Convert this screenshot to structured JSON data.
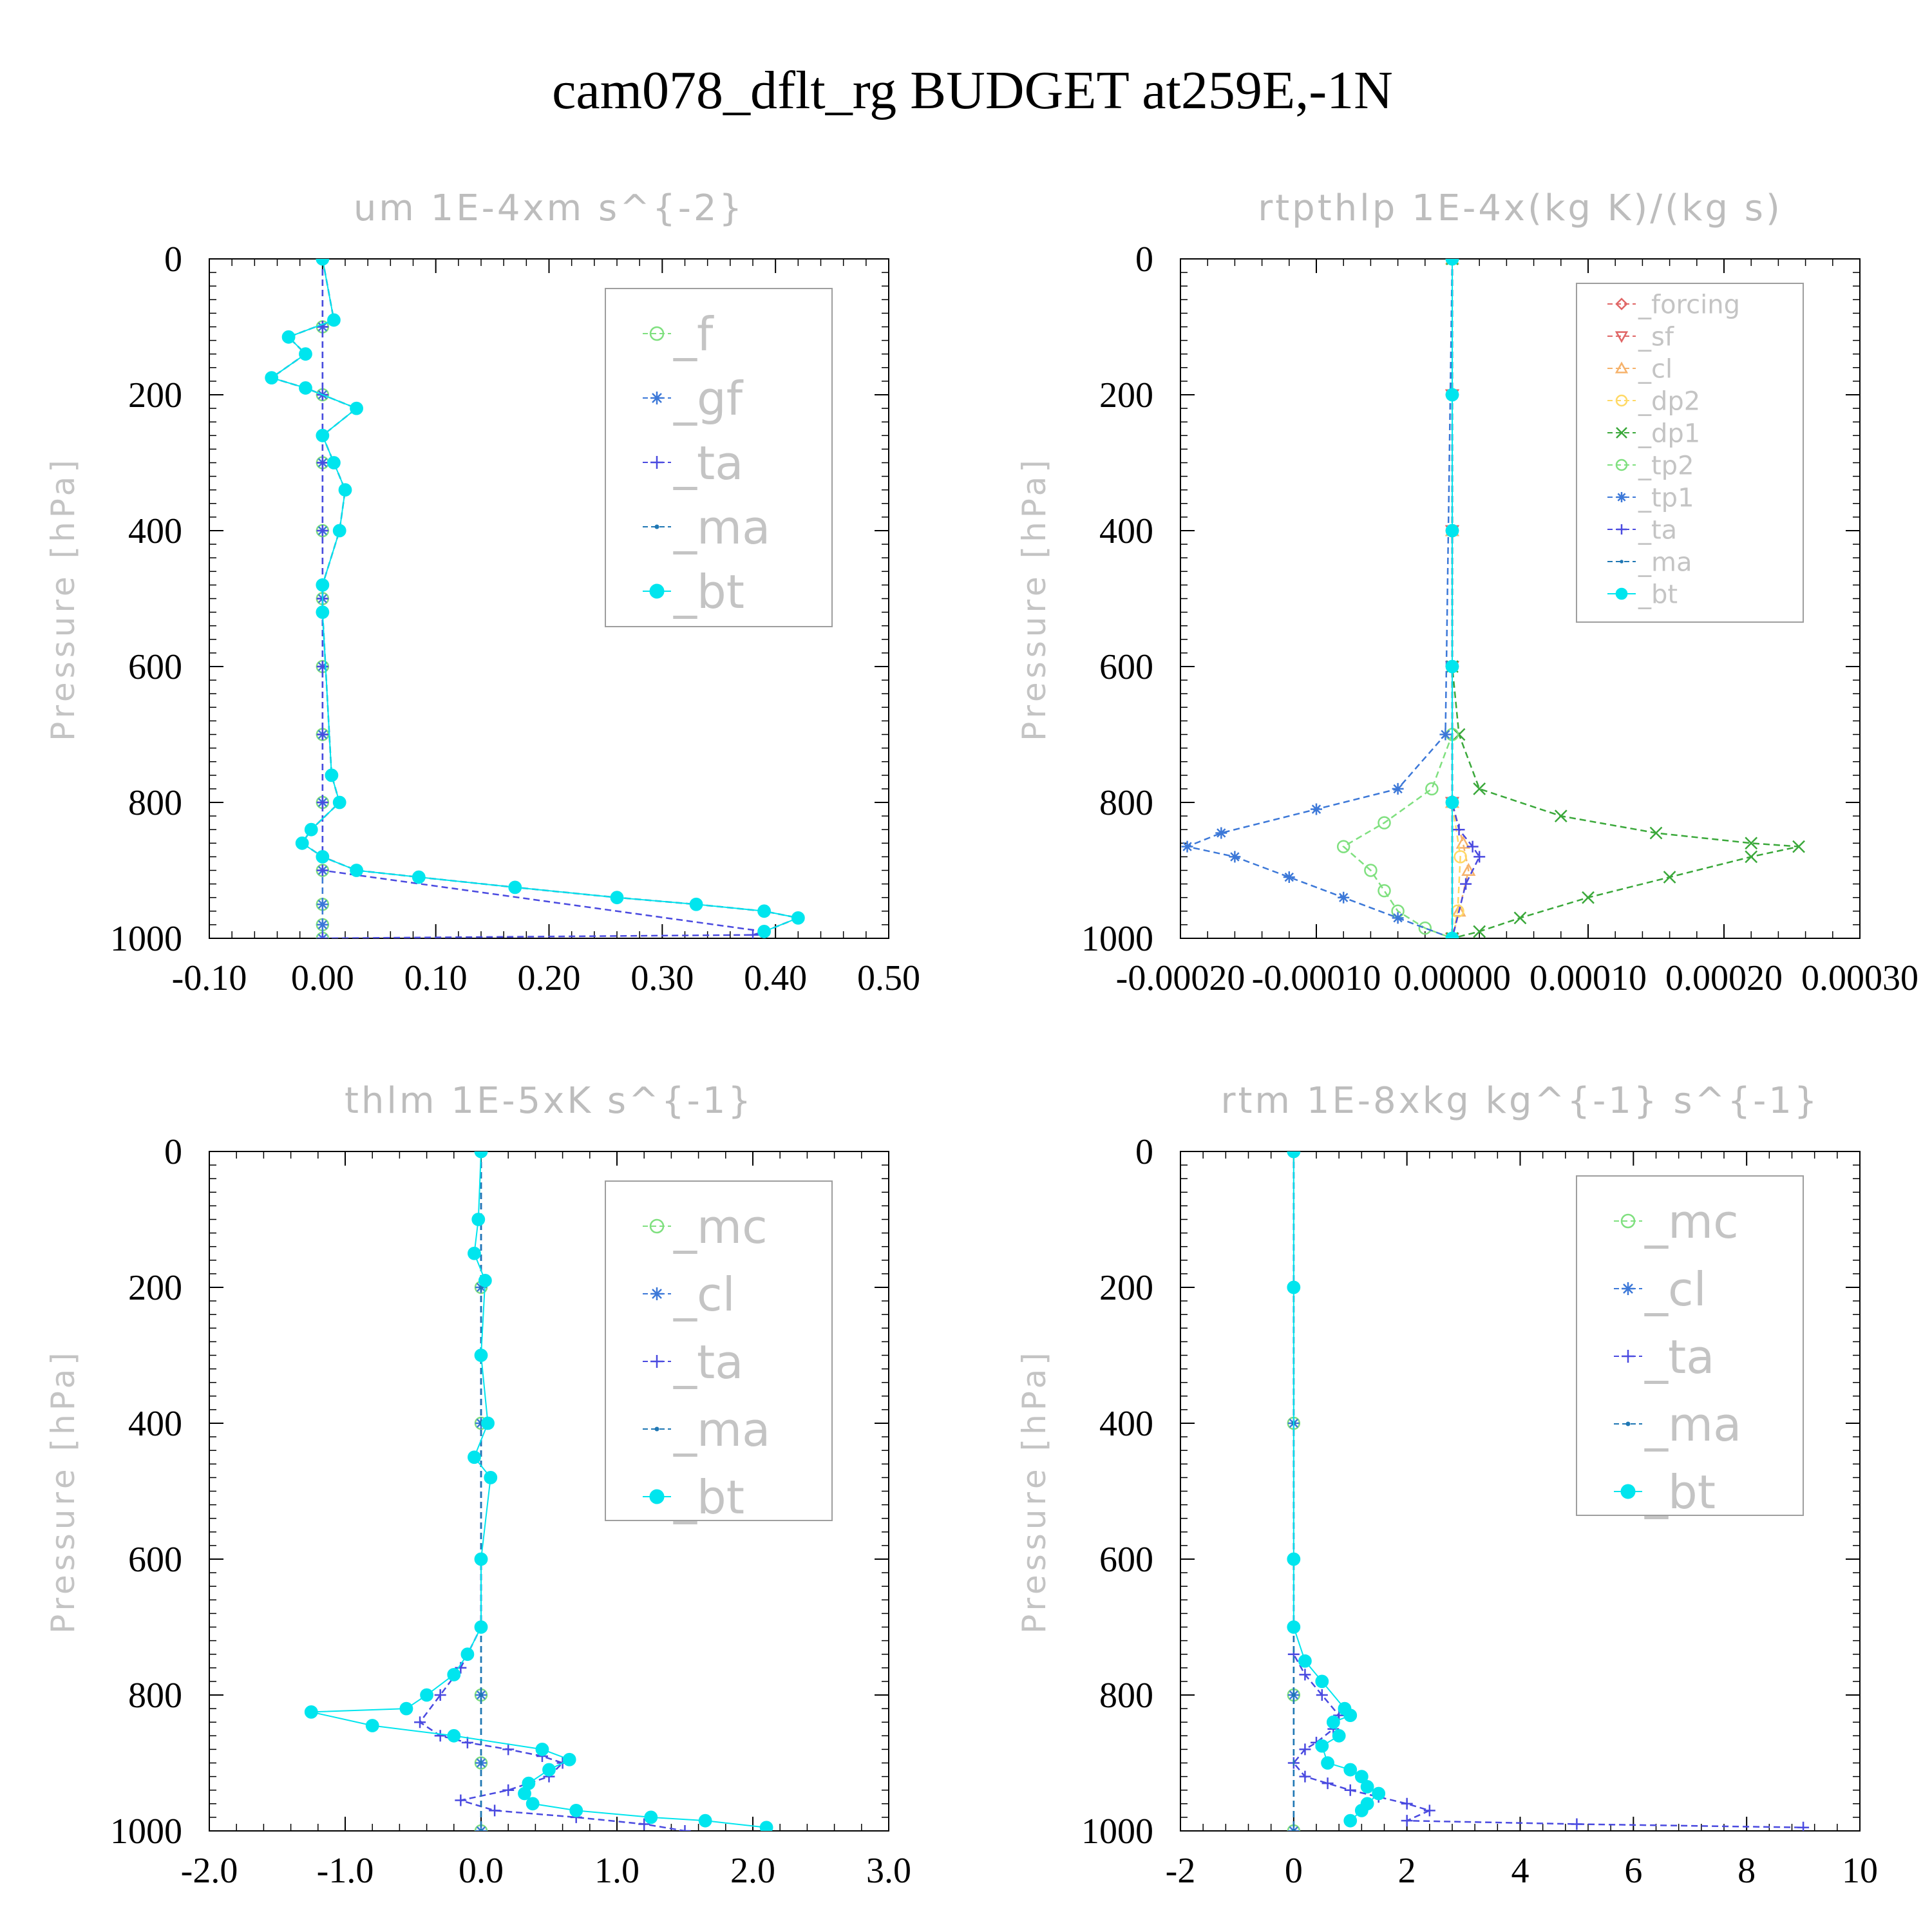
{
  "figure_title": "cam078_dflt_rg  BUDGET at259E,-1N",
  "chart_data": [
    {
      "type": "line",
      "title": "um  1E-4xm s^{-2}",
      "ylabel": "Pressure [hPa]",
      "xlabel": "",
      "xlim": [
        -0.1,
        0.5
      ],
      "ylim": [
        1000,
        0
      ],
      "x_tick_labels": [
        "-0.10",
        "0.00",
        "0.10",
        "0.20",
        "0.30",
        "0.40",
        "0.50"
      ],
      "y_tick_labels": [
        "0",
        "200",
        "400",
        "600",
        "800",
        "1000"
      ],
      "legend_position": "top-right",
      "series": [
        {
          "name": "_f",
          "color": "#7fe07f",
          "marker": "circle-open",
          "x": [
            0,
            0,
            0,
            0,
            0,
            0,
            0,
            0,
            0,
            0,
            0,
            0,
            0
          ],
          "y": [
            0,
            100,
            200,
            300,
            400,
            500,
            600,
            700,
            800,
            900,
            950,
            980,
            1000
          ]
        },
        {
          "name": "_gf",
          "color": "#3c78d8",
          "marker": "star",
          "x": [
            0,
            0,
            0,
            0,
            0,
            0,
            0,
            0,
            0,
            0,
            0,
            0,
            0
          ],
          "y": [
            0,
            100,
            200,
            300,
            400,
            500,
            600,
            700,
            800,
            900,
            950,
            980,
            1000
          ]
        },
        {
          "name": "_ta",
          "color": "#4a4ae0",
          "marker": "plus",
          "x": [
            0,
            0,
            0,
            0,
            0,
            0,
            0,
            0,
            0,
            0,
            0.39,
            0.38,
            0
          ],
          "y": [
            0,
            100,
            200,
            300,
            400,
            500,
            600,
            700,
            800,
            900,
            990,
            995,
            1000
          ]
        },
        {
          "name": "_ma",
          "color": "#1f77b4",
          "marker": "dot",
          "x": [
            0,
            0.01,
            -0.03,
            -0.015,
            -0.045,
            -0.015,
            0.03,
            0,
            0.01,
            0.02,
            0.015,
            0,
            0,
            0.008,
            0.015,
            -0.01,
            -0.018,
            0,
            0.03,
            0.085,
            0.17,
            0.26,
            0.33,
            0.39,
            0.42,
            0.39
          ],
          "y": [
            0,
            90,
            115,
            140,
            175,
            190,
            220,
            260,
            300,
            340,
            400,
            480,
            520,
            760,
            800,
            840,
            860,
            880,
            900,
            910,
            925,
            940,
            950,
            960,
            970,
            990
          ]
        },
        {
          "name": "_bt",
          "color": "#00e5ee",
          "marker": "filled-circle",
          "x": [
            0,
            0.01,
            -0.03,
            -0.015,
            -0.045,
            -0.015,
            0.03,
            0,
            0.01,
            0.02,
            0.015,
            0,
            0,
            0.008,
            0.015,
            -0.01,
            -0.018,
            0,
            0.03,
            0.085,
            0.17,
            0.26,
            0.33,
            0.39,
            0.42,
            0.39
          ],
          "y": [
            0,
            90,
            115,
            140,
            175,
            190,
            220,
            260,
            300,
            340,
            400,
            480,
            520,
            760,
            800,
            840,
            860,
            880,
            900,
            910,
            925,
            940,
            950,
            960,
            970,
            990
          ]
        }
      ]
    },
    {
      "type": "line",
      "title": "rtpthlp  1E-4x(kg K)/(kg s)",
      "ylabel": "Pressure [hPa]",
      "xlabel": "",
      "xlim": [
        -0.0002,
        0.0003
      ],
      "ylim": [
        1000,
        0
      ],
      "x_tick_labels": [
        "-0.00020",
        "-0.00010",
        "0.00000",
        "0.00010",
        "0.00020",
        "0.00030"
      ],
      "y_tick_labels": [
        "0",
        "200",
        "400",
        "600",
        "800",
        "1000"
      ],
      "legend_position": "top-right",
      "series": [
        {
          "name": "_forcing",
          "color": "#e06666",
          "marker": "diamond",
          "x": [
            0,
            0,
            0,
            0,
            0,
            0
          ],
          "y": [
            0,
            200,
            400,
            600,
            800,
            1000
          ]
        },
        {
          "name": "_sf",
          "color": "#e06666",
          "marker": "triangle-down",
          "x": [
            0,
            0,
            0,
            0,
            0,
            0
          ],
          "y": [
            0,
            200,
            400,
            600,
            800,
            1000
          ]
        },
        {
          "name": "_cl",
          "color": "#f6b26b",
          "marker": "triangle-up",
          "x": [
            0,
            0,
            0,
            8e-06,
            1.2e-05,
            5e-06,
            0
          ],
          "y": [
            0,
            400,
            800,
            860,
            900,
            960,
            1000
          ]
        },
        {
          "name": "_dp2",
          "color": "#ffd966",
          "marker": "circle-open",
          "x": [
            0,
            0,
            0,
            6e-06,
            4e-06,
            0
          ],
          "y": [
            0,
            400,
            800,
            880,
            960,
            1000
          ]
        },
        {
          "name": "_dp1",
          "color": "#3aa83a",
          "marker": "cross",
          "x": [
            0,
            0,
            5e-06,
            2e-05,
            8e-05,
            0.00015,
            0.00022,
            0.000255,
            0.00022,
            0.00016,
            0.0001,
            5e-05,
            2e-05,
            0
          ],
          "y": [
            0,
            600,
            700,
            780,
            820,
            845,
            860,
            865,
            880,
            910,
            940,
            970,
            990,
            1000
          ]
        },
        {
          "name": "_tp2",
          "color": "#7fe07f",
          "marker": "circle-open",
          "x": [
            0,
            0,
            -1.5e-05,
            -5e-05,
            -8e-05,
            -6e-05,
            -5e-05,
            -4e-05,
            -2e-05,
            0
          ],
          "y": [
            0,
            700,
            780,
            830,
            865,
            900,
            930,
            960,
            985,
            1000
          ]
        },
        {
          "name": "_tp1",
          "color": "#3c78d8",
          "marker": "star",
          "x": [
            0,
            -5e-06,
            -4e-05,
            -0.0001,
            -0.00017,
            -0.000195,
            -0.00016,
            -0.00012,
            -8e-05,
            -4e-05,
            0
          ],
          "y": [
            0,
            700,
            780,
            810,
            845,
            865,
            880,
            910,
            940,
            970,
            1000
          ]
        },
        {
          "name": "_ta",
          "color": "#4a4ae0",
          "marker": "plus",
          "x": [
            0,
            0,
            5e-06,
            1.5e-05,
            2e-05,
            1e-05,
            0
          ],
          "y": [
            0,
            800,
            840,
            865,
            880,
            920,
            1000
          ]
        },
        {
          "name": "_ma",
          "color": "#1f77b4",
          "marker": "dot",
          "x": [
            0,
            0,
            0,
            0,
            0,
            0
          ],
          "y": [
            0,
            200,
            400,
            600,
            800,
            1000
          ]
        },
        {
          "name": "_bt",
          "color": "#00e5ee",
          "marker": "filled-circle",
          "x": [
            0,
            0,
            0,
            0,
            0,
            0
          ],
          "y": [
            0,
            200,
            400,
            600,
            800,
            1000
          ]
        }
      ]
    },
    {
      "type": "line",
      "title": "thlm  1E-5xK s^{-1}",
      "ylabel": "Pressure [hPa]",
      "xlabel": "",
      "xlim": [
        -2.0,
        3.0
      ],
      "ylim": [
        1000,
        0
      ],
      "x_tick_labels": [
        "-2.0",
        "-1.0",
        "0.0",
        "1.0",
        "2.0",
        "3.0"
      ],
      "y_tick_labels": [
        "0",
        "200",
        "400",
        "600",
        "800",
        "1000"
      ],
      "legend_position": "top-right",
      "series": [
        {
          "name": "_mc",
          "color": "#7fe07f",
          "marker": "circle-open",
          "x": [
            0,
            0,
            0,
            0,
            0,
            0,
            0
          ],
          "y": [
            0,
            200,
            400,
            600,
            800,
            900,
            1000
          ]
        },
        {
          "name": "_cl",
          "color": "#3c78d8",
          "marker": "star",
          "x": [
            0,
            0,
            0,
            0,
            0,
            0,
            0
          ],
          "y": [
            0,
            200,
            400,
            600,
            800,
            900,
            1000
          ]
        },
        {
          "name": "_ta",
          "color": "#4a4ae0",
          "marker": "plus",
          "x": [
            0,
            0,
            -0.15,
            -0.3,
            -0.45,
            -0.3,
            -0.1,
            0.2,
            0.45,
            0.6,
            0.5,
            0.2,
            -0.15,
            0.1,
            0.7,
            1.2,
            1.5
          ],
          "y": [
            0,
            700,
            760,
            800,
            840,
            860,
            870,
            880,
            890,
            900,
            920,
            940,
            955,
            970,
            980,
            990,
            1000
          ]
        },
        {
          "name": "_ma",
          "color": "#1f77b4",
          "marker": "dot",
          "x": [
            0,
            0,
            0,
            0,
            0,
            0
          ],
          "y": [
            0,
            200,
            400,
            600,
            800,
            1000
          ]
        },
        {
          "name": "_bt",
          "color": "#00e5ee",
          "marker": "filled-circle",
          "x": [
            0,
            -0.02,
            -0.05,
            0.03,
            0,
            0.05,
            -0.05,
            0.07,
            0,
            0,
            -0.1,
            -0.2,
            -0.4,
            -0.55,
            -1.25,
            -0.8,
            -0.2,
            0.45,
            0.65,
            0.5,
            0.35,
            0.32,
            0.38,
            0.7,
            1.25,
            1.65,
            2.1
          ],
          "y": [
            0,
            100,
            150,
            190,
            300,
            400,
            450,
            480,
            600,
            700,
            740,
            770,
            800,
            820,
            825,
            845,
            860,
            880,
            895,
            910,
            930,
            945,
            960,
            970,
            980,
            985,
            995
          ]
        }
      ]
    },
    {
      "type": "line",
      "title": "rtm  1E-8xkg kg^{-1} s^{-1}",
      "ylabel": "Pressure [hPa]",
      "xlabel": "",
      "xlim": [
        -2,
        10
      ],
      "ylim": [
        1000,
        0
      ],
      "x_tick_labels": [
        "-2",
        "0",
        "2",
        "4",
        "6",
        "8",
        "10"
      ],
      "y_tick_labels": [
        "0",
        "200",
        "400",
        "600",
        "800",
        "1000"
      ],
      "legend_position": "top-right",
      "series": [
        {
          "name": "_mc",
          "color": "#7fe07f",
          "marker": "circle-open",
          "x": [
            0,
            0,
            0,
            0,
            0,
            0
          ],
          "y": [
            0,
            200,
            400,
            600,
            800,
            1000
          ]
        },
        {
          "name": "_cl",
          "color": "#3c78d8",
          "marker": "star",
          "x": [
            0,
            0,
            0,
            0,
            0,
            0
          ],
          "y": [
            0,
            200,
            400,
            600,
            800,
            1000
          ]
        },
        {
          "name": "_ta",
          "color": "#4a4ae0",
          "marker": "plus",
          "x": [
            0,
            0,
            0.2,
            0.5,
            0.8,
            0.7,
            0.4,
            0.2,
            0,
            0.2,
            0.6,
            1.0,
            1.5,
            2.0,
            2.4,
            2.0,
            5.0,
            9.0
          ],
          "y": [
            0,
            740,
            770,
            800,
            830,
            850,
            870,
            880,
            900,
            920,
            930,
            940,
            950,
            960,
            970,
            985,
            990,
            995
          ]
        },
        {
          "name": "_ma",
          "color": "#1f77b4",
          "marker": "dot",
          "x": [
            0,
            0,
            0,
            0,
            0,
            0
          ],
          "y": [
            0,
            200,
            400,
            600,
            800,
            1000
          ]
        },
        {
          "name": "_bt",
          "color": "#00e5ee",
          "marker": "filled-circle",
          "x": [
            0,
            0,
            0,
            0,
            0.2,
            0.5,
            0.9,
            1.0,
            0.7,
            0.8,
            0.5,
            0.6,
            1.0,
            1.2,
            1.3,
            1.5,
            1.3,
            1.2,
            1.0
          ],
          "y": [
            0,
            200,
            600,
            700,
            750,
            780,
            820,
            830,
            840,
            860,
            875,
            900,
            910,
            920,
            935,
            945,
            960,
            970,
            985
          ]
        }
      ]
    }
  ]
}
